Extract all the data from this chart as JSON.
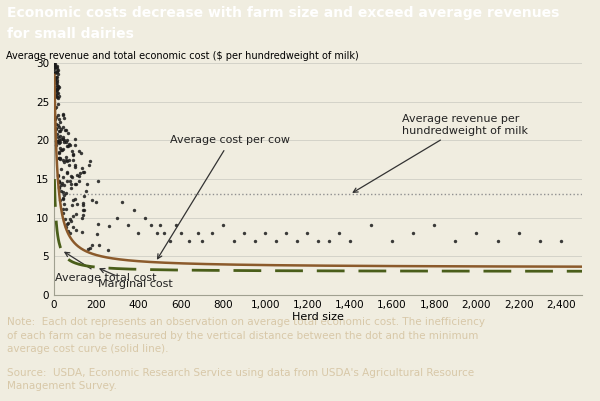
{
  "title_line1": "Economic costs decrease with farm size and exceed average revenues",
  "title_line2": "for small dairies",
  "title_bg": "#7B3A10",
  "title_color": "#FFFFFF",
  "plot_bg": "#F0EDE0",
  "fig_bg": "#F0EDE0",
  "ylabel": "Average revenue and total economic cost ($ per hundredweight of milk)",
  "xlabel": "Herd size",
  "xlim": [
    0,
    2500
  ],
  "ylim": [
    0,
    30
  ],
  "yticks": [
    0,
    5,
    10,
    15,
    20,
    25,
    30
  ],
  "xtick_labels": [
    "0",
    "200",
    "400",
    "600",
    "800",
    "1,000",
    "1,200",
    "1,400",
    "1,600",
    "1,800",
    "2,000",
    "2,200",
    "2,400"
  ],
  "xtick_vals": [
    0,
    200,
    400,
    600,
    800,
    1000,
    1200,
    1400,
    1600,
    1800,
    2000,
    2200,
    2400
  ],
  "avg_revenue_level": 13.0,
  "avg_revenue_label": "Average revenue per\nhundredweight of milk",
  "avg_cost_per_cow_label": "Average cost per cow",
  "avg_total_cost_label": "Average total cost",
  "marginal_cost_label": "Marginal cost",
  "curve_color_solid": "#8B5A2B",
  "curve_color_dashed": "#4A5E1A",
  "dotted_line_color": "#909090",
  "scatter_color": "#1A1A1A",
  "note_bg": "#7B3A10",
  "note_color": "#D8C8A8",
  "note_text": "Note:  Each dot represents an observation on average total economic cost. The inefficiency\nof each farm can be measured by the vertical distance between the dot and the minimum\naverage cost curve (solid line).",
  "source_text": "Source:  USDA, Economic Research Service using data from USDA's Agricultural Resource\nManagement Survey.",
  "title_fontsize": 10,
  "label_fontsize": 8,
  "tick_fontsize": 7.5,
  "note_fontsize": 7.5,
  "annot_fontsize": 8
}
